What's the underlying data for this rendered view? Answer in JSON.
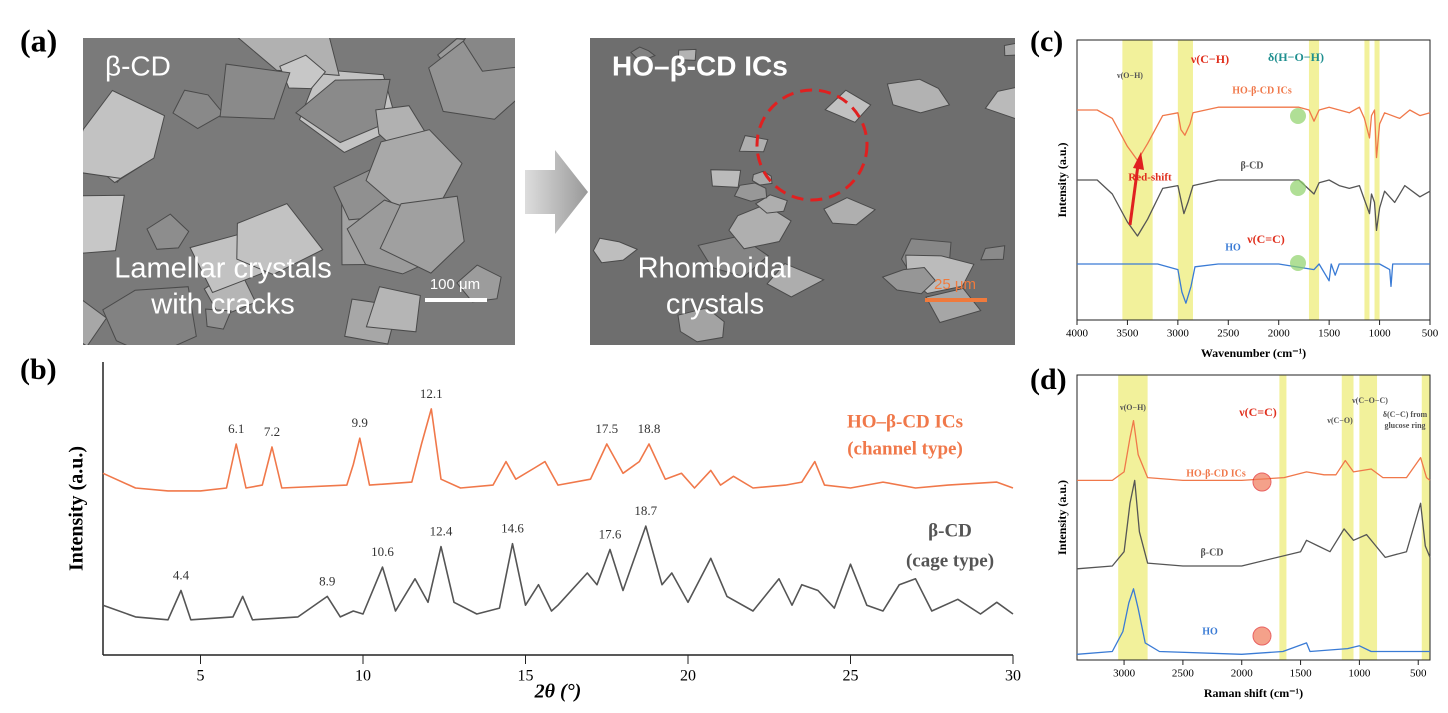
{
  "panel_a": {
    "label": "(a)",
    "images": [
      {
        "title": "β-CD",
        "caption": [
          "Lamellar crystals",
          "with cracks"
        ],
        "scale_bar": "100 μm"
      },
      {
        "title": "HO–β-CD ICs",
        "caption": [
          "Rhomboidal",
          "crystals"
        ],
        "scale_bar": "25 μm"
      }
    ]
  },
  "chart_data": [
    {
      "type": "line",
      "label": "(b)",
      "xlabel": "2θ (°)",
      "ylabel": "Intensity (a.u.)",
      "xlim": [
        2,
        30
      ],
      "ylim": [
        0,
        100
      ],
      "xticks": [
        5,
        10,
        15,
        20,
        25,
        30
      ],
      "series": [
        {
          "name": "HO–β-CD ICs",
          "note": "(channel type)",
          "color": "#f0784a",
          "x": [
            2,
            3,
            4,
            5,
            5.8,
            6.1,
            6.4,
            6.9,
            7.2,
            7.5,
            9.5,
            9.7,
            9.9,
            10.2,
            11.5,
            11.8,
            12.1,
            12.4,
            13,
            14,
            14.4,
            14.7,
            15.3,
            15.6,
            16,
            17,
            17.5,
            18,
            18.5,
            18.8,
            19.3,
            19.8,
            20.2,
            20.7,
            21,
            21.4,
            22,
            23,
            23.5,
            23.9,
            24.2,
            25,
            26,
            27,
            28,
            29.5,
            30
          ],
          "values": [
            62,
            57,
            56,
            56,
            57,
            72,
            57,
            58,
            71,
            57,
            58,
            65,
            74,
            58,
            59,
            72,
            84,
            60,
            57,
            58,
            66,
            60,
            64,
            66,
            58,
            60,
            72,
            62,
            66,
            72,
            60,
            62,
            57,
            63,
            58,
            61,
            57,
            58,
            59,
            66,
            58,
            57,
            59,
            57,
            58,
            59,
            57
          ],
          "peak_labels": [
            6.1,
            7.2,
            9.9,
            12.1,
            17.5,
            18.8
          ]
        },
        {
          "name": "β-CD",
          "note": "(cage type)",
          "color": "#555555",
          "x": [
            2,
            3,
            4,
            4.4,
            4.7,
            6,
            6.3,
            6.6,
            8,
            8.9,
            9.3,
            9.7,
            10,
            10.6,
            11,
            11.6,
            12,
            12.4,
            12.8,
            13.5,
            14.2,
            14.6,
            15,
            15.4,
            15.8,
            16,
            16.9,
            17.2,
            17.6,
            18,
            18.7,
            19.2,
            19.5,
            20,
            20.7,
            21.2,
            22,
            22.8,
            23.2,
            23.5,
            24,
            24.5,
            25,
            25.5,
            26,
            26.5,
            27,
            27.5,
            28.3,
            29,
            29.5,
            30
          ],
          "values": [
            17,
            13,
            12,
            22,
            12,
            13,
            20,
            12,
            13,
            20,
            13,
            15,
            14,
            30,
            15,
            26,
            18,
            37,
            18,
            14,
            16,
            38,
            17,
            24,
            15,
            17,
            28,
            24,
            36,
            22,
            44,
            24,
            28,
            18,
            33,
            20,
            15,
            26,
            17,
            24,
            22,
            16,
            31,
            17,
            15,
            24,
            26,
            15,
            19,
            14,
            18,
            14
          ],
          "peak_labels": [
            4.4,
            8.9,
            10.6,
            12.4,
            14.6,
            17.6,
            18.7
          ]
        }
      ]
    },
    {
      "type": "line",
      "label": "(c)",
      "xlabel": "Wavenumber (cm⁻¹)",
      "ylabel": "Intensity (a.u.)",
      "xlim": [
        4000,
        500
      ],
      "ylim": [
        0,
        100
      ],
      "xticks": [
        4000,
        3500,
        3000,
        2500,
        2000,
        1500,
        1000,
        500
      ],
      "bands": [
        [
          3550,
          3250
        ],
        [
          3000,
          2850
        ],
        [
          1700,
          1600
        ],
        [
          1150,
          1100
        ],
        [
          1050,
          1000
        ]
      ],
      "annotations": [
        "ν(C−H)",
        "δ(H−O−H)",
        "ν(C=C)",
        "Red-shift",
        "ν(O−H)"
      ],
      "series": [
        {
          "name": "HO-β-CD ICs",
          "color": "#f0784a",
          "x": [
            4000,
            3800,
            3650,
            3500,
            3400,
            3300,
            3150,
            3000,
            2970,
            2930,
            2880,
            2850,
            2600,
            2200,
            1800,
            1700,
            1650,
            1600,
            1500,
            1400,
            1300,
            1200,
            1150,
            1100,
            1080,
            1050,
            1030,
            1000,
            950,
            800,
            700,
            600,
            500
          ],
          "values": [
            75,
            75,
            72,
            62,
            57,
            63,
            73,
            74,
            68,
            66,
            70,
            74,
            76,
            76,
            76,
            75,
            71,
            75,
            76,
            75,
            74,
            76,
            72,
            65,
            73,
            75,
            58,
            70,
            74,
            72,
            75,
            73,
            74
          ]
        },
        {
          "name": "β-CD",
          "color": "#555555",
          "x": [
            4000,
            3800,
            3650,
            3500,
            3400,
            3300,
            3150,
            3000,
            2940,
            2900,
            2850,
            2600,
            2200,
            1800,
            1650,
            1600,
            1500,
            1400,
            1300,
            1200,
            1150,
            1100,
            1080,
            1050,
            1030,
            1000,
            950,
            850,
            750,
            600,
            500
          ],
          "values": [
            50,
            50,
            45,
            35,
            30,
            36,
            47,
            48,
            38,
            42,
            48,
            50,
            50,
            50,
            45,
            49,
            50,
            48,
            47,
            48,
            43,
            38,
            45,
            42,
            32,
            40,
            46,
            42,
            48,
            44,
            46
          ]
        },
        {
          "name": "HO",
          "color": "#3a7bd5",
          "x": [
            4000,
            3500,
            3200,
            3000,
            2960,
            2920,
            2870,
            2830,
            2600,
            2000,
            1650,
            1600,
            1500,
            1480,
            1440,
            1400,
            1000,
            900,
            887,
            870,
            500
          ],
          "values": [
            20,
            20,
            20,
            18,
            10,
            6,
            12,
            19,
            20,
            20,
            18,
            20,
            14,
            20,
            16,
            20,
            20,
            18,
            12,
            20,
            20
          ]
        }
      ]
    },
    {
      "type": "line",
      "label": "(d)",
      "xlabel": "Raman shift (cm⁻¹)",
      "ylabel": "Intensity (a.u.)",
      "xlim": [
        3400,
        400
      ],
      "ylim": [
        0,
        100
      ],
      "xticks": [
        3000,
        2500,
        2000,
        1500,
        1000,
        500
      ],
      "bands": [
        [
          3050,
          2800
        ],
        [
          1680,
          1620
        ],
        [
          1150,
          1050
        ],
        [
          1000,
          850
        ],
        [
          470,
          400
        ]
      ],
      "annotations": [
        "ν(O−H)",
        "ν(C=C)",
        "ν(C−O)",
        "ν(C−O−C)",
        "δ(C−C) from",
        "glucose ring"
      ],
      "series": [
        {
          "name": "HO-β-CD ICs",
          "color": "#f0784a",
          "x": [
            3400,
            3100,
            3000,
            2950,
            2920,
            2880,
            2800,
            2500,
            2000,
            1640,
            1450,
            1300,
            1200,
            1120,
            1050,
            900,
            800,
            600,
            480,
            430,
            400
          ],
          "values": [
            63,
            63,
            66,
            78,
            84,
            72,
            64,
            63,
            63,
            64,
            66,
            65,
            65,
            70,
            66,
            67,
            64,
            64,
            71,
            64,
            63
          ]
        },
        {
          "name": "β-CD",
          "color": "#555555",
          "x": [
            3400,
            3100,
            3000,
            2950,
            2910,
            2870,
            2800,
            2500,
            2000,
            1500,
            1450,
            1350,
            1250,
            1130,
            1050,
            940,
            860,
            780,
            600,
            480,
            440,
            400
          ],
          "values": [
            32,
            33,
            38,
            55,
            63,
            45,
            34,
            33,
            33,
            38,
            42,
            40,
            38,
            46,
            42,
            44,
            40,
            36,
            38,
            55,
            40,
            36
          ]
        },
        {
          "name": "HO",
          "color": "#3a7bd5",
          "x": [
            3400,
            3100,
            3010,
            2960,
            2920,
            2880,
            2820,
            2700,
            2000,
            1650,
            1450,
            1420,
            1100,
            1000,
            900,
            400
          ],
          "values": [
            2,
            3,
            10,
            20,
            25,
            18,
            6,
            3,
            2,
            3,
            6,
            3,
            4,
            5,
            3,
            3
          ]
        }
      ]
    }
  ]
}
